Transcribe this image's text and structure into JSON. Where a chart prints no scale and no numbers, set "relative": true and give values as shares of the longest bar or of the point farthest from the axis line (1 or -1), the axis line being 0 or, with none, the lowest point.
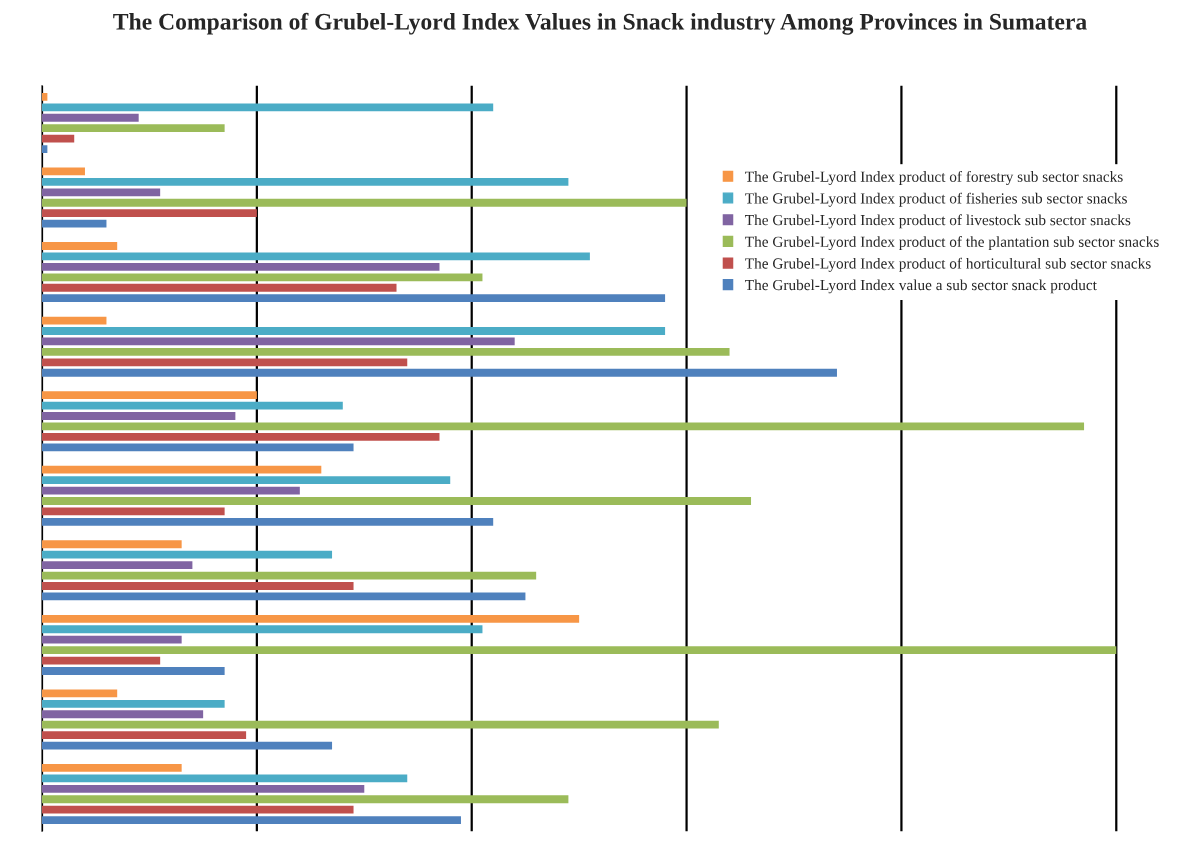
{
  "chart_data": {
    "type": "bar",
    "orientation": "horizontal",
    "relative": true,
    "title": "The Comparison of Grubel-Lyord Index Values in Snack industry Among Provinces in Sumatera",
    "categories": [
      null,
      null,
      null,
      null,
      null,
      null,
      null,
      null,
      null,
      null
    ],
    "series": [
      {
        "name": "The Grubel-Lyord Index product of forestry sub sector snacks",
        "color": "#f79646",
        "values": [
          0.005,
          0.04,
          0.07,
          0.06,
          0.2,
          0.26,
          0.13,
          0.5,
          0.07,
          0.13
        ]
      },
      {
        "name": "The Grubel-Lyord Index product of fisheries sub sector snacks",
        "color": "#4bacc6",
        "values": [
          0.42,
          0.49,
          0.51,
          0.58,
          0.28,
          0.38,
          0.27,
          0.41,
          0.17,
          0.34
        ]
      },
      {
        "name": "The Grubel-Lyord Index product of livestock sub sector snacks",
        "color": "#8064a2",
        "values": [
          0.09,
          0.11,
          0.37,
          0.44,
          0.18,
          0.24,
          0.14,
          0.13,
          0.15,
          0.3
        ]
      },
      {
        "name": "The Grubel-Lyord Index product of the plantation sub sector snacks",
        "color": "#9bbb59",
        "values": [
          0.17,
          0.6,
          0.41,
          0.64,
          0.97,
          0.66,
          0.46,
          1.0,
          0.63,
          0.49
        ]
      },
      {
        "name": "The Grubel-Lyord Index product of horticultural sub sector snacks",
        "color": "#c0504d",
        "values": [
          0.03,
          0.2,
          0.33,
          0.34,
          0.37,
          0.17,
          0.29,
          0.11,
          0.19,
          0.29
        ]
      },
      {
        "name": "The Grubel-Lyord Index value a sub sector snack product",
        "color": "#4f81bd",
        "values": [
          0.005,
          0.06,
          0.58,
          0.74,
          0.29,
          0.42,
          0.45,
          0.17,
          0.27,
          0.39
        ]
      }
    ],
    "grid": "x",
    "legend": "top right"
  }
}
